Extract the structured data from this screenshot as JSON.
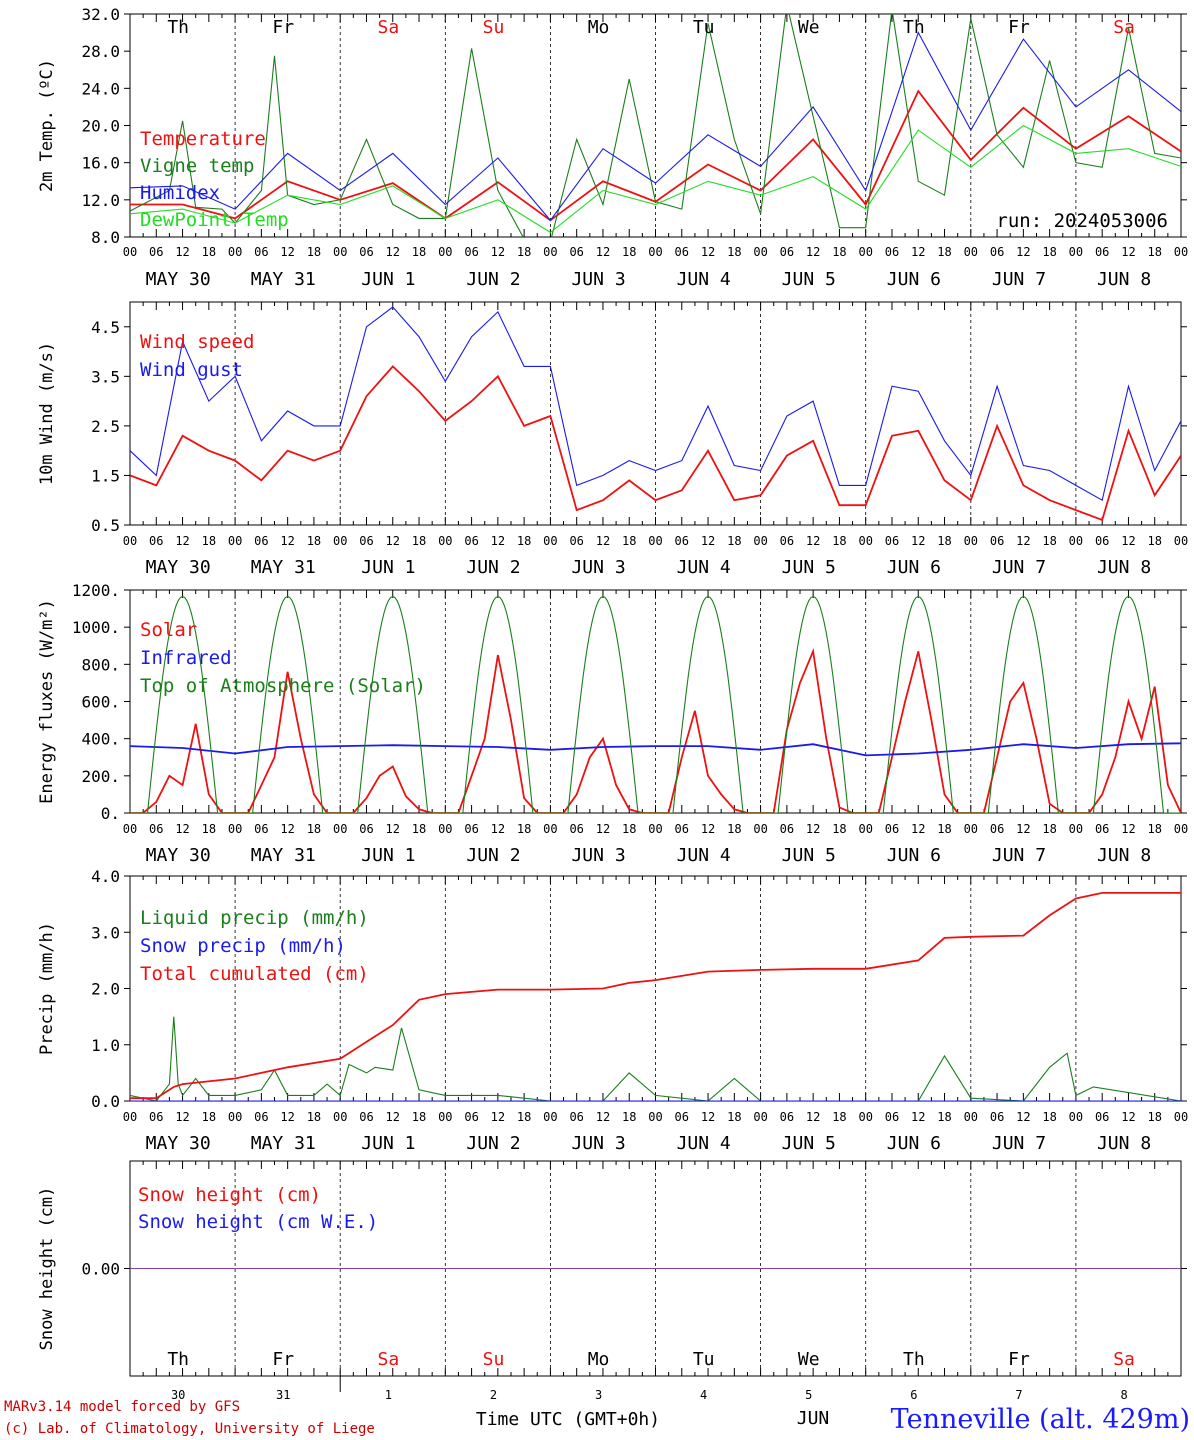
{
  "colors": {
    "red": "#ee1111",
    "green": "#1a7f1a",
    "blue": "#1a1aee",
    "lightgreen": "#22dd22",
    "purple": "#8844aa",
    "weekend": "#ee1111",
    "weekday": "#000000"
  },
  "x_axis": {
    "hour_ticks": [
      "00",
      "06",
      "12",
      "18"
    ],
    "date_labels": [
      "MAY 30",
      "MAY 31",
      "JUN  1",
      "JUN  2",
      "JUN  3",
      "JUN  4",
      "JUN  5",
      "JUN  6",
      "JUN  7",
      "JUN  8"
    ],
    "weekdays": [
      {
        "label": "Th",
        "weekend": false
      },
      {
        "label": "Fr",
        "weekend": false
      },
      {
        "label": "Sa",
        "weekend": true
      },
      {
        "label": "Su",
        "weekend": true
      },
      {
        "label": "Mo",
        "weekend": false
      },
      {
        "label": "Tu",
        "weekend": false
      },
      {
        "label": "We",
        "weekend": false
      },
      {
        "label": "Th",
        "weekend": false
      },
      {
        "label": "Fr",
        "weekend": false
      },
      {
        "label": "Sa",
        "weekend": true
      }
    ],
    "day_numbers": [
      "30",
      "31",
      "1",
      "2",
      "3",
      "4",
      "5",
      "6",
      "7",
      "8"
    ],
    "month_label": "JUN"
  },
  "footer": {
    "model": "MARv3.14 model forced by GFS",
    "copyright": "(c) Lab. of Climatology, University of Liege",
    "axis_title": "Time UTC (GMT+0h)",
    "station": "Tenneville (alt. 429m)"
  },
  "chart_data": [
    {
      "type": "line",
      "id": "temp",
      "ylabel": "2m Temp. (ºC)",
      "ylim": [
        8,
        32
      ],
      "yticks": [
        "8.0",
        "12.0",
        "16.0",
        "20.0",
        "24.0",
        "28.0",
        "32.0"
      ],
      "annotation": "run: 2024053006",
      "x_unit": "hours since MAY 30 00 UTC",
      "series": [
        {
          "name": "Temperature",
          "color": "#ee1111",
          "x": [
            0,
            12,
            24,
            36,
            48,
            60,
            72,
            84,
            96,
            108,
            120,
            132,
            144,
            156,
            168,
            180,
            192,
            204,
            216,
            228,
            240
          ],
          "values": [
            11.5,
            11.5,
            10.0,
            14.0,
            12.0,
            13.8,
            10.0,
            13.9,
            9.8,
            14.0,
            11.8,
            15.8,
            13.0,
            18.5,
            11.5,
            23.7,
            16.3,
            21.9,
            17.5,
            21.0,
            17.2
          ]
        },
        {
          "name": "Vigne temp",
          "color": "#1a7f1a",
          "x": [
            0,
            9,
            12,
            15,
            21,
            24,
            30,
            33,
            36,
            42,
            48,
            54,
            60,
            66,
            72,
            78,
            84,
            90,
            96,
            102,
            108,
            114,
            120,
            126,
            132,
            138,
            144,
            150,
            156,
            162,
            168,
            174,
            180,
            186,
            192,
            198,
            204,
            210,
            216,
            222,
            228,
            234,
            240
          ],
          "values": [
            10.8,
            13.0,
            20.5,
            11.2,
            11.0,
            9.5,
            13.0,
            27.5,
            12.5,
            11.5,
            12.0,
            18.5,
            11.5,
            10.0,
            10.0,
            28.3,
            13.0,
            7.8,
            7.5,
            18.5,
            11.5,
            25.0,
            11.8,
            11.0,
            31.0,
            18.5,
            10.5,
            33.0,
            21.0,
            9.0,
            9.0,
            32.5,
            14.0,
            12.5,
            31.5,
            19.0,
            15.5,
            27.0,
            16.0,
            15.5,
            30.5,
            17.0,
            16.5
          ]
        },
        {
          "name": "Humidex",
          "color": "#1a1aee",
          "x": [
            0,
            12,
            24,
            36,
            48,
            60,
            72,
            84,
            96,
            108,
            120,
            132,
            144,
            156,
            168,
            180,
            192,
            204,
            216,
            228,
            240
          ],
          "values": [
            13.3,
            13.5,
            11.0,
            17.0,
            13.0,
            17.0,
            11.5,
            16.5,
            9.8,
            17.5,
            13.8,
            19.0,
            15.6,
            22.0,
            13.0,
            30.0,
            19.5,
            29.3,
            22.0,
            26.0,
            21.5
          ]
        },
        {
          "name": "DewPoint Temp",
          "color": "#22dd22",
          "x": [
            0,
            12,
            24,
            36,
            48,
            60,
            72,
            84,
            96,
            108,
            120,
            132,
            144,
            156,
            168,
            180,
            192,
            204,
            216,
            228,
            240
          ],
          "values": [
            10.5,
            11.0,
            9.5,
            12.5,
            11.5,
            13.5,
            10.0,
            12.0,
            8.5,
            13.0,
            11.5,
            14.0,
            12.5,
            14.5,
            11.0,
            19.5,
            15.5,
            20.0,
            17.0,
            17.5,
            15.6
          ]
        }
      ]
    },
    {
      "type": "line",
      "id": "wind",
      "ylabel": "10m Wind (m/s)",
      "ylim": [
        0.5,
        5.0
      ],
      "yticks": [
        "0.5",
        "1.5",
        "2.5",
        "3.5",
        "4.5"
      ],
      "x_unit": "hours since MAY 30 00 UTC",
      "series": [
        {
          "name": "Wind speed",
          "color": "#ee1111",
          "x": [
            0,
            6,
            12,
            18,
            24,
            30,
            36,
            42,
            48,
            54,
            60,
            66,
            72,
            78,
            84,
            90,
            96,
            102,
            108,
            114,
            120,
            126,
            132,
            138,
            144,
            150,
            156,
            162,
            168,
            174,
            180,
            186,
            192,
            198,
            204,
            210,
            216,
            222,
            228,
            234,
            240
          ],
          "values": [
            1.5,
            1.3,
            2.3,
            2.0,
            1.8,
            1.4,
            2.0,
            1.8,
            2.0,
            3.1,
            3.7,
            3.2,
            2.6,
            3.0,
            3.5,
            2.5,
            2.7,
            0.8,
            1.0,
            1.4,
            1.0,
            1.2,
            2.0,
            1.0,
            1.1,
            1.9,
            2.2,
            0.9,
            0.9,
            2.3,
            2.4,
            1.4,
            1.0,
            2.5,
            1.3,
            1.0,
            0.8,
            0.6,
            2.4,
            1.1,
            1.9
          ]
        },
        {
          "name": "Wind gust",
          "color": "#1a1aee",
          "x": [
            0,
            6,
            12,
            18,
            24,
            30,
            36,
            42,
            48,
            54,
            60,
            66,
            72,
            78,
            84,
            90,
            96,
            102,
            108,
            114,
            120,
            126,
            132,
            138,
            144,
            150,
            156,
            162,
            168,
            174,
            180,
            186,
            192,
            198,
            204,
            210,
            216,
            222,
            228,
            234,
            240
          ],
          "values": [
            2.0,
            1.5,
            4.2,
            3.0,
            3.5,
            2.2,
            2.8,
            2.5,
            2.5,
            4.5,
            4.9,
            4.3,
            3.4,
            4.3,
            4.8,
            3.7,
            3.7,
            1.3,
            1.5,
            1.8,
            1.6,
            1.8,
            2.9,
            1.7,
            1.6,
            2.7,
            3.0,
            1.3,
            1.3,
            3.3,
            3.2,
            2.2,
            1.5,
            3.3,
            1.7,
            1.6,
            1.3,
            1.0,
            3.3,
            1.6,
            2.6
          ]
        }
      ]
    },
    {
      "type": "line",
      "id": "energy",
      "ylabel": "Energy fluxes (W/m²)",
      "ylim": [
        0,
        1200
      ],
      "yticks": [
        "0.",
        "200.",
        "400.",
        "600.",
        "800.",
        "1000.",
        "1200."
      ],
      "x_unit": "hours since MAY 30 00 UTC",
      "series": [
        {
          "name": "Solar",
          "color": "#ee1111",
          "x": [
            0,
            3,
            6,
            9,
            12,
            15,
            18,
            21,
            24,
            27,
            30,
            33,
            36,
            39,
            42,
            45,
            48,
            51,
            54,
            57,
            60,
            63,
            66,
            69,
            72,
            75,
            78,
            81,
            84,
            87,
            90,
            93,
            96,
            99,
            102,
            105,
            108,
            111,
            114,
            117,
            120,
            123,
            126,
            129,
            132,
            135,
            138,
            141,
            144,
            147,
            150,
            153,
            156,
            159,
            162,
            165,
            168,
            171,
            174,
            177,
            180,
            183,
            186,
            189,
            192,
            195,
            198,
            201,
            204,
            207,
            210,
            213,
            216,
            219,
            222,
            225,
            228,
            231,
            234,
            237,
            240
          ],
          "values": [
            0,
            0,
            60,
            200,
            150,
            480,
            100,
            0,
            0,
            0,
            150,
            300,
            760,
            400,
            100,
            0,
            0,
            0,
            80,
            200,
            250,
            90,
            20,
            0,
            0,
            0,
            200,
            400,
            850,
            500,
            80,
            0,
            0,
            0,
            100,
            300,
            400,
            150,
            20,
            0,
            0,
            0,
            300,
            550,
            200,
            100,
            20,
            0,
            0,
            0,
            450,
            700,
            870,
            400,
            30,
            0,
            0,
            0,
            300,
            600,
            870,
            500,
            100,
            0,
            0,
            0,
            300,
            600,
            700,
            400,
            50,
            0,
            0,
            0,
            100,
            300,
            600,
            400,
            680,
            150,
            0
          ]
        },
        {
          "name": "Infrared",
          "color": "#1a1aee",
          "x": [
            0,
            12,
            24,
            36,
            48,
            60,
            72,
            84,
            96,
            108,
            120,
            132,
            144,
            156,
            168,
            180,
            192,
            204,
            216,
            228,
            240
          ],
          "values": [
            360,
            350,
            320,
            355,
            360,
            365,
            360,
            355,
            340,
            355,
            360,
            360,
            340,
            370,
            310,
            320,
            340,
            370,
            350,
            370,
            375
          ]
        },
        {
          "name": "Top of Atmosphere (Solar)",
          "color": "#1a7f1a",
          "sinusoid": {
            "peak": 1165,
            "sunrise": 4,
            "sunset": 20
          }
        }
      ]
    },
    {
      "type": "line",
      "id": "precip",
      "ylabel": "Precip (mm/h)",
      "ylim": [
        0,
        4.0
      ],
      "yticks": [
        "0.0",
        "1.0",
        "2.0",
        "3.0",
        "4.0"
      ],
      "x_unit": "hours since MAY 30 00 UTC",
      "series": [
        {
          "name": "Liquid precip (mm/h)",
          "color": "#1a7f1a",
          "x": [
            0,
            6,
            9,
            10,
            11,
            12,
            15,
            18,
            24,
            30,
            33,
            36,
            42,
            45,
            48,
            50,
            54,
            56,
            60,
            62,
            66,
            72,
            84,
            96,
            108,
            114,
            120,
            132,
            138,
            144,
            168,
            180,
            186,
            192,
            204,
            210,
            214,
            216,
            220,
            240
          ],
          "values": [
            0.1,
            0,
            0.3,
            1.5,
            0.3,
            0.1,
            0.4,
            0.1,
            0.1,
            0.2,
            0.55,
            0.1,
            0.1,
            0.3,
            0.1,
            0.65,
            0.5,
            0.6,
            0.55,
            1.3,
            0.2,
            0.1,
            0.1,
            0,
            0,
            0.5,
            0.1,
            0,
            0.4,
            0,
            0,
            0,
            0.8,
            0.05,
            0,
            0.6,
            0.85,
            0.1,
            0.25,
            0
          ]
        },
        {
          "name": "Snow precip (mm/h)",
          "color": "#1a1aee",
          "x": [
            0,
            240
          ],
          "values": [
            0,
            0
          ]
        },
        {
          "name": "Total cumulated (cm)",
          "color": "#ee1111",
          "x": [
            0,
            6,
            10,
            12,
            24,
            36,
            48,
            56,
            60,
            66,
            72,
            84,
            96,
            108,
            114,
            120,
            132,
            144,
            156,
            168,
            180,
            186,
            192,
            204,
            210,
            216,
            222,
            240
          ],
          "values": [
            0.05,
            0.05,
            0.25,
            0.3,
            0.4,
            0.6,
            0.75,
            1.15,
            1.35,
            1.8,
            1.9,
            1.98,
            1.98,
            2.0,
            2.1,
            2.15,
            2.3,
            2.33,
            2.35,
            2.35,
            2.5,
            2.9,
            2.92,
            2.94,
            3.3,
            3.6,
            3.7,
            3.7
          ]
        }
      ]
    },
    {
      "type": "line",
      "id": "snow",
      "ylabel": "Snow height (cm)",
      "ylim": [
        -1,
        1
      ],
      "yticks": [
        "0.00"
      ],
      "x_unit": "hours since MAY 30 00 UTC",
      "series": [
        {
          "name": "Snow height (cm)",
          "color": "#ee1111",
          "x": [
            0,
            240
          ],
          "values": [
            0,
            0
          ]
        },
        {
          "name": "Snow height (cm W.E.)",
          "color": "#1a1aee",
          "x": [
            0,
            240
          ],
          "values": [
            0,
            0
          ]
        }
      ]
    }
  ]
}
